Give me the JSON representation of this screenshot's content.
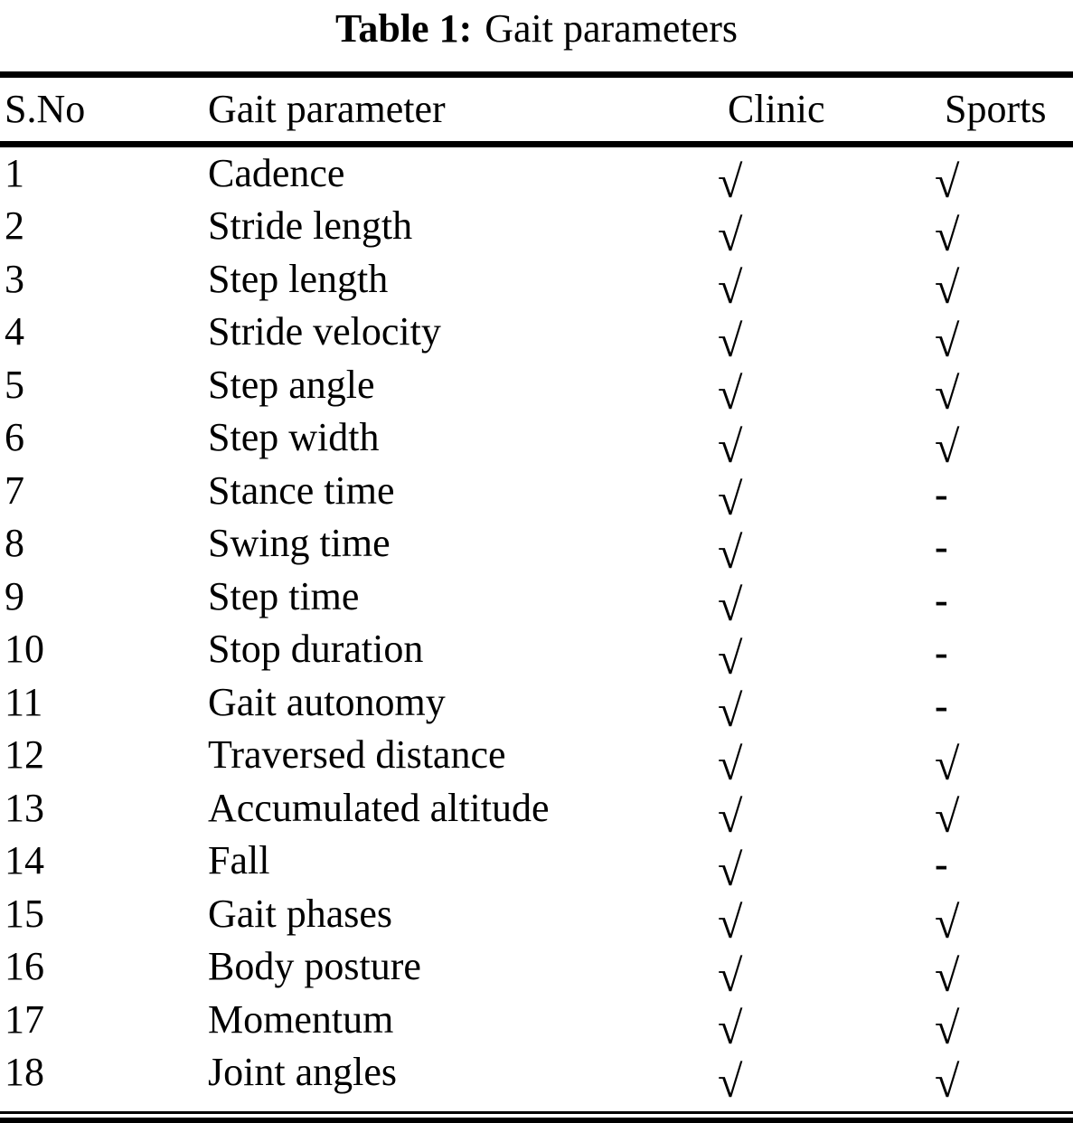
{
  "caption": {
    "label": "Table 1:",
    "title": "Gait parameters"
  },
  "table": {
    "columns": [
      "S.No",
      "Gait parameter",
      "Clinic",
      "Sports"
    ],
    "symbols": {
      "check": "√",
      "none": "-"
    },
    "rows": [
      {
        "no": "1",
        "parameter": "Cadence",
        "clinic": "check",
        "sports": "check"
      },
      {
        "no": "2",
        "parameter": "Stride length",
        "clinic": "check",
        "sports": "check"
      },
      {
        "no": "3",
        "parameter": "Step length",
        "clinic": "check",
        "sports": "check"
      },
      {
        "no": "4",
        "parameter": "Stride velocity",
        "clinic": "check",
        "sports": "check"
      },
      {
        "no": "5",
        "parameter": "Step angle",
        "clinic": "check",
        "sports": "check"
      },
      {
        "no": "6",
        "parameter": "Step width",
        "clinic": "check",
        "sports": "check"
      },
      {
        "no": "7",
        "parameter": "Stance time",
        "clinic": "check",
        "sports": "none"
      },
      {
        "no": "8",
        "parameter": "Swing time",
        "clinic": "check",
        "sports": "none"
      },
      {
        "no": "9",
        "parameter": "Step time",
        "clinic": "check",
        "sports": "none"
      },
      {
        "no": "10",
        "parameter": "Stop duration",
        "clinic": "check",
        "sports": "none"
      },
      {
        "no": "11",
        "parameter": "Gait autonomy",
        "clinic": "check",
        "sports": "none"
      },
      {
        "no": "12",
        "parameter": "Traversed distance",
        "clinic": "check",
        "sports": "check"
      },
      {
        "no": "13",
        "parameter": "Accumulated altitude",
        "clinic": "check",
        "sports": "check"
      },
      {
        "no": "14",
        "parameter": "Fall",
        "clinic": "check",
        "sports": "none"
      },
      {
        "no": "15",
        "parameter": "Gait phases",
        "clinic": "check",
        "sports": "check"
      },
      {
        "no": "16",
        "parameter": "Body posture",
        "clinic": "check",
        "sports": "check"
      },
      {
        "no": "17",
        "parameter": "Momentum",
        "clinic": "check",
        "sports": "check"
      },
      {
        "no": "18",
        "parameter": "Joint angles",
        "clinic": "check",
        "sports": "check"
      }
    ]
  }
}
